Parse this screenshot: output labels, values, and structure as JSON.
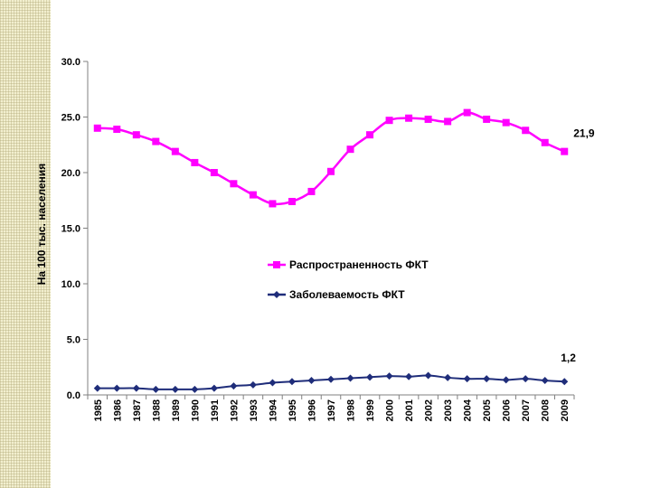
{
  "chart_data": {
    "type": "line",
    "title": "",
    "xlabel": "",
    "ylabel": "На 100 тыс. населения",
    "ylim": [
      0,
      30
    ],
    "yticks": [
      "0.0",
      "5.0",
      "10.0",
      "15.0",
      "20.0",
      "25.0",
      "30.0"
    ],
    "grid": false,
    "legend_position": "center-right",
    "categories": [
      "1985",
      "1986",
      "1987",
      "1988",
      "1989",
      "1990",
      "1991",
      "1992",
      "1993",
      "1994",
      "1995",
      "1996",
      "1997",
      "1998",
      "1999",
      "2000",
      "2001",
      "2002",
      "2003",
      "2004",
      "2005",
      "2006",
      "2007",
      "2008",
      "2009"
    ],
    "series": [
      {
        "name": "Распространенность ФКТ",
        "color": "#ff00ff",
        "marker": "square",
        "values": [
          24.0,
          23.9,
          23.4,
          22.8,
          21.9,
          20.9,
          20.0,
          19.0,
          18.0,
          17.2,
          17.4,
          18.3,
          20.1,
          22.1,
          23.4,
          24.7,
          24.9,
          24.8,
          24.6,
          25.4,
          24.8,
          24.5,
          23.8,
          22.7,
          21.9
        ],
        "end_label": "21,9"
      },
      {
        "name": "Заболеваемость ФКТ",
        "color": "#1f2d7a",
        "marker": "diamond",
        "values": [
          0.6,
          0.6,
          0.6,
          0.5,
          0.5,
          0.5,
          0.6,
          0.8,
          0.9,
          1.1,
          1.2,
          1.3,
          1.4,
          1.5,
          1.6,
          1.7,
          1.65,
          1.75,
          1.55,
          1.45,
          1.45,
          1.35,
          1.45,
          1.3,
          1.2
        ],
        "end_label": "1,2"
      }
    ]
  }
}
